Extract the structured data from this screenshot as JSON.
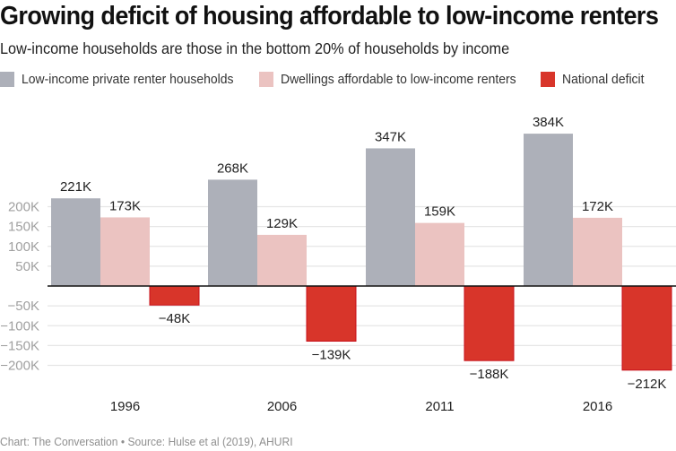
{
  "header": {
    "title": "Growing deficit of housing affordable to low-income renters",
    "subtitle": "Low-income households are those in the bottom 20% of households by income"
  },
  "legend": [
    {
      "label": "Low-income private renter households",
      "color": "#adb0b9"
    },
    {
      "label": "Dwellings affordable to low-income renters",
      "color": "#ebc3c1"
    },
    {
      "label": "National deficit",
      "color": "#d8352a"
    }
  ],
  "footer": {
    "source": "Chart: The Conversation • Source: Hulse et al (2019), AHURI"
  },
  "chart_data": {
    "type": "bar",
    "title": "Growing deficit of housing affordable to low-income renters",
    "subtitle": "Low-income households are those in the bottom 20% of households by income",
    "xlabel": "",
    "ylabel": "",
    "categories": [
      "1996",
      "2006",
      "2011",
      "2016"
    ],
    "series": [
      {
        "name": "Low-income private renter households",
        "color": "#adb0b9",
        "values": [
          221,
          268,
          347,
          384
        ],
        "labels": [
          "221K",
          "268K",
          "347K",
          "384K"
        ]
      },
      {
        "name": "Dwellings affordable to low-income renters",
        "color": "#ebc3c1",
        "values": [
          173,
          129,
          159,
          172
        ],
        "labels": [
          "173K",
          "129K",
          "159K",
          "172K"
        ]
      },
      {
        "name": "National deficit",
        "color": "#d8352a",
        "stroke": "#c8101a",
        "values": [
          -48,
          -139,
          -188,
          -212
        ],
        "labels": [
          "−48K",
          "−139K",
          "−188K",
          "−212K"
        ]
      }
    ],
    "units": "thousands",
    "y_ticks": [
      {
        "value": 200,
        "label": "200K"
      },
      {
        "value": 150,
        "label": "150K"
      },
      {
        "value": 100,
        "label": "100K"
      },
      {
        "value": 50,
        "label": "50K"
      },
      {
        "value": -50,
        "label": "−50K"
      },
      {
        "value": -100,
        "label": "−100K"
      },
      {
        "value": -150,
        "label": "−150K"
      },
      {
        "value": -200,
        "label": "−200K"
      }
    ],
    "ylim": [
      -212,
      384
    ],
    "grid": true,
    "legend_position": "top-left"
  }
}
